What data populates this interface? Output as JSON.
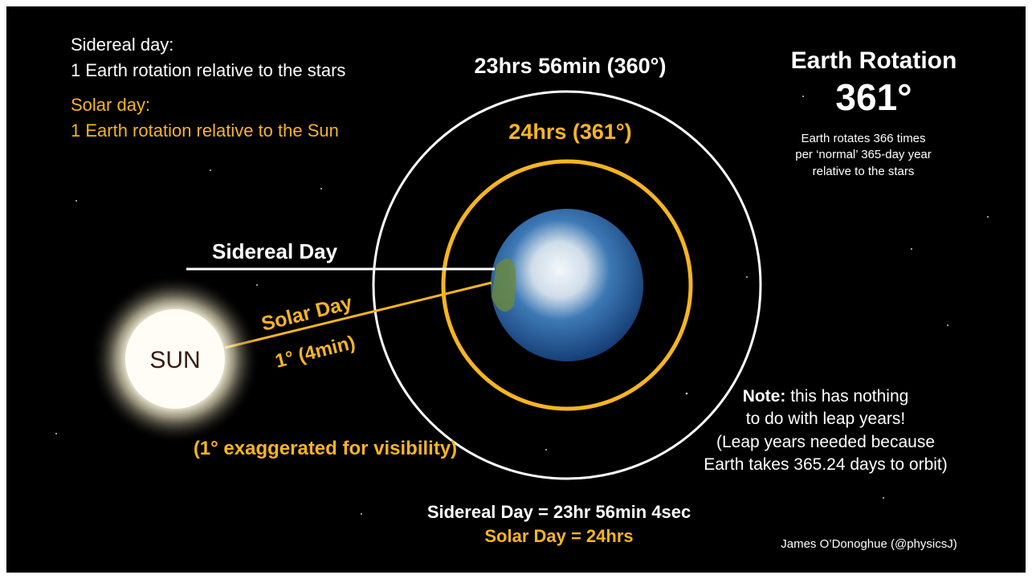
{
  "legend": {
    "sidereal_title": "Sidereal day:",
    "sidereal_text": "1 Earth rotation relative to the stars",
    "solar_title": "Solar day:",
    "solar_text": "1 Earth rotation relative to the Sun"
  },
  "orbits": {
    "outer_label": "23hrs 56min (360°)",
    "inner_label": "24hrs (361°)"
  },
  "rotation": {
    "title": "Earth Rotation",
    "degrees": "361°",
    "lines": [
      "Earth rotates 366 times",
      "per ‘normal’ 365-day year",
      "relative to the stars"
    ]
  },
  "lines": {
    "sidereal": "Sidereal Day",
    "solar": "Solar Day",
    "solar_angle": "1° (4min)"
  },
  "sun": "SUN",
  "exaggeration_note": "(1° exaggerated for visibility)",
  "note": {
    "bold": "Note:",
    "lines": [
      " this has nothing",
      "to do with leap years!",
      "(Leap years needed because",
      "Earth takes 365.24 days to orbit)"
    ]
  },
  "summary": {
    "sidereal": "Sidereal Day = 23hr 56min 4sec",
    "solar": "Solar Day = 24hrs"
  },
  "credit": "James O’Donoghue (@physicsJ)"
}
